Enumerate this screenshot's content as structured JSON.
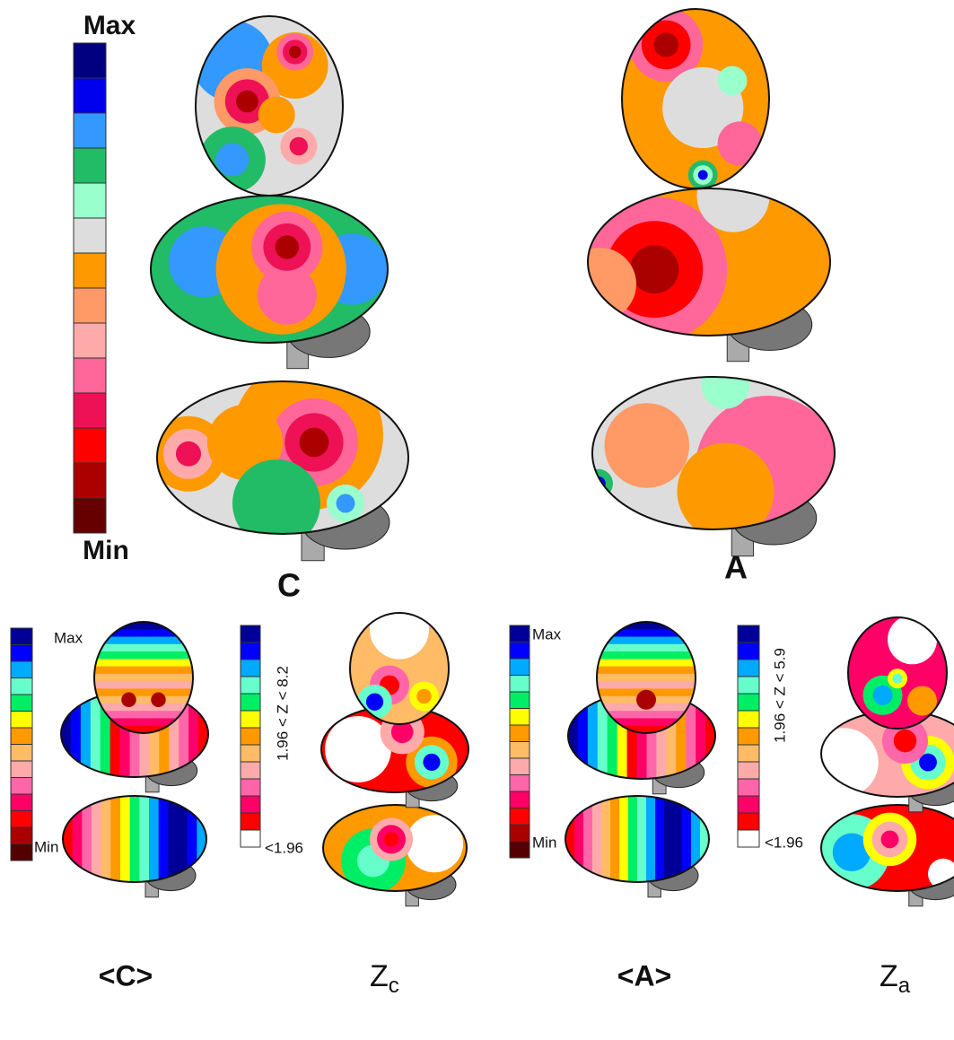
{
  "top": {
    "max_label": "Max",
    "min_label": "Min",
    "colors": [
      "#000080",
      "#0000ee",
      "#3399ff",
      "#22bb66",
      "#99ffcc",
      "#dddddd",
      "#ff9900",
      "#ff9966",
      "#ffaaaa",
      "#ff6699",
      "#ee1155",
      "#ff0000",
      "#aa0000",
      "#660000"
    ],
    "maps": [
      {
        "label": "C"
      },
      {
        "label": "A"
      }
    ]
  },
  "bottom": {
    "average_scales": [
      {
        "max_label": "Max",
        "min_label": "Min"
      },
      {
        "max_label": "Max",
        "min_label": "Min"
      }
    ],
    "average_colors": [
      "#000099",
      "#0000ff",
      "#00aaff",
      "#66ffcc",
      "#00ee66",
      "#ffff00",
      "#ff9900",
      "#ffbb66",
      "#ffaaaa",
      "#ff66aa",
      "#ff0066",
      "#ff0000",
      "#aa0000",
      "#550000"
    ],
    "z_scales": [
      {
        "range": "1.96 < Z < 8.2",
        "threshold": "<1.96"
      },
      {
        "range": "1.96 < Z < 5.9",
        "threshold": "<1.96"
      }
    ],
    "z_colors": [
      "#000099",
      "#0000ff",
      "#00aaff",
      "#66ffcc",
      "#00ee66",
      "#ffff00",
      "#ff9900",
      "#ffbb66",
      "#ffaaaa",
      "#ff66aa",
      "#ff0066",
      "#ff0000",
      "#ffffff"
    ],
    "maps": [
      {
        "label": "<C>"
      },
      {
        "label": {
          "main": "Z",
          "sub": "c"
        }
      },
      {
        "label": "<A>"
      },
      {
        "label": {
          "main": "Z",
          "sub": "a"
        }
      }
    ]
  }
}
